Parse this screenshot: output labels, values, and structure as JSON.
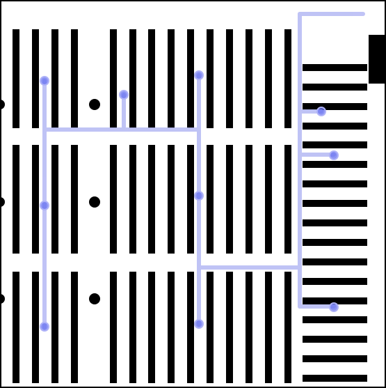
{
  "canvas": {
    "title": "",
    "background_color": "#ffffff",
    "ink_color": "#000000",
    "overlay_color": "#b9bdf5",
    "marker_color": "#6670f0"
  },
  "diagram": {
    "description_text": ""
  }
}
